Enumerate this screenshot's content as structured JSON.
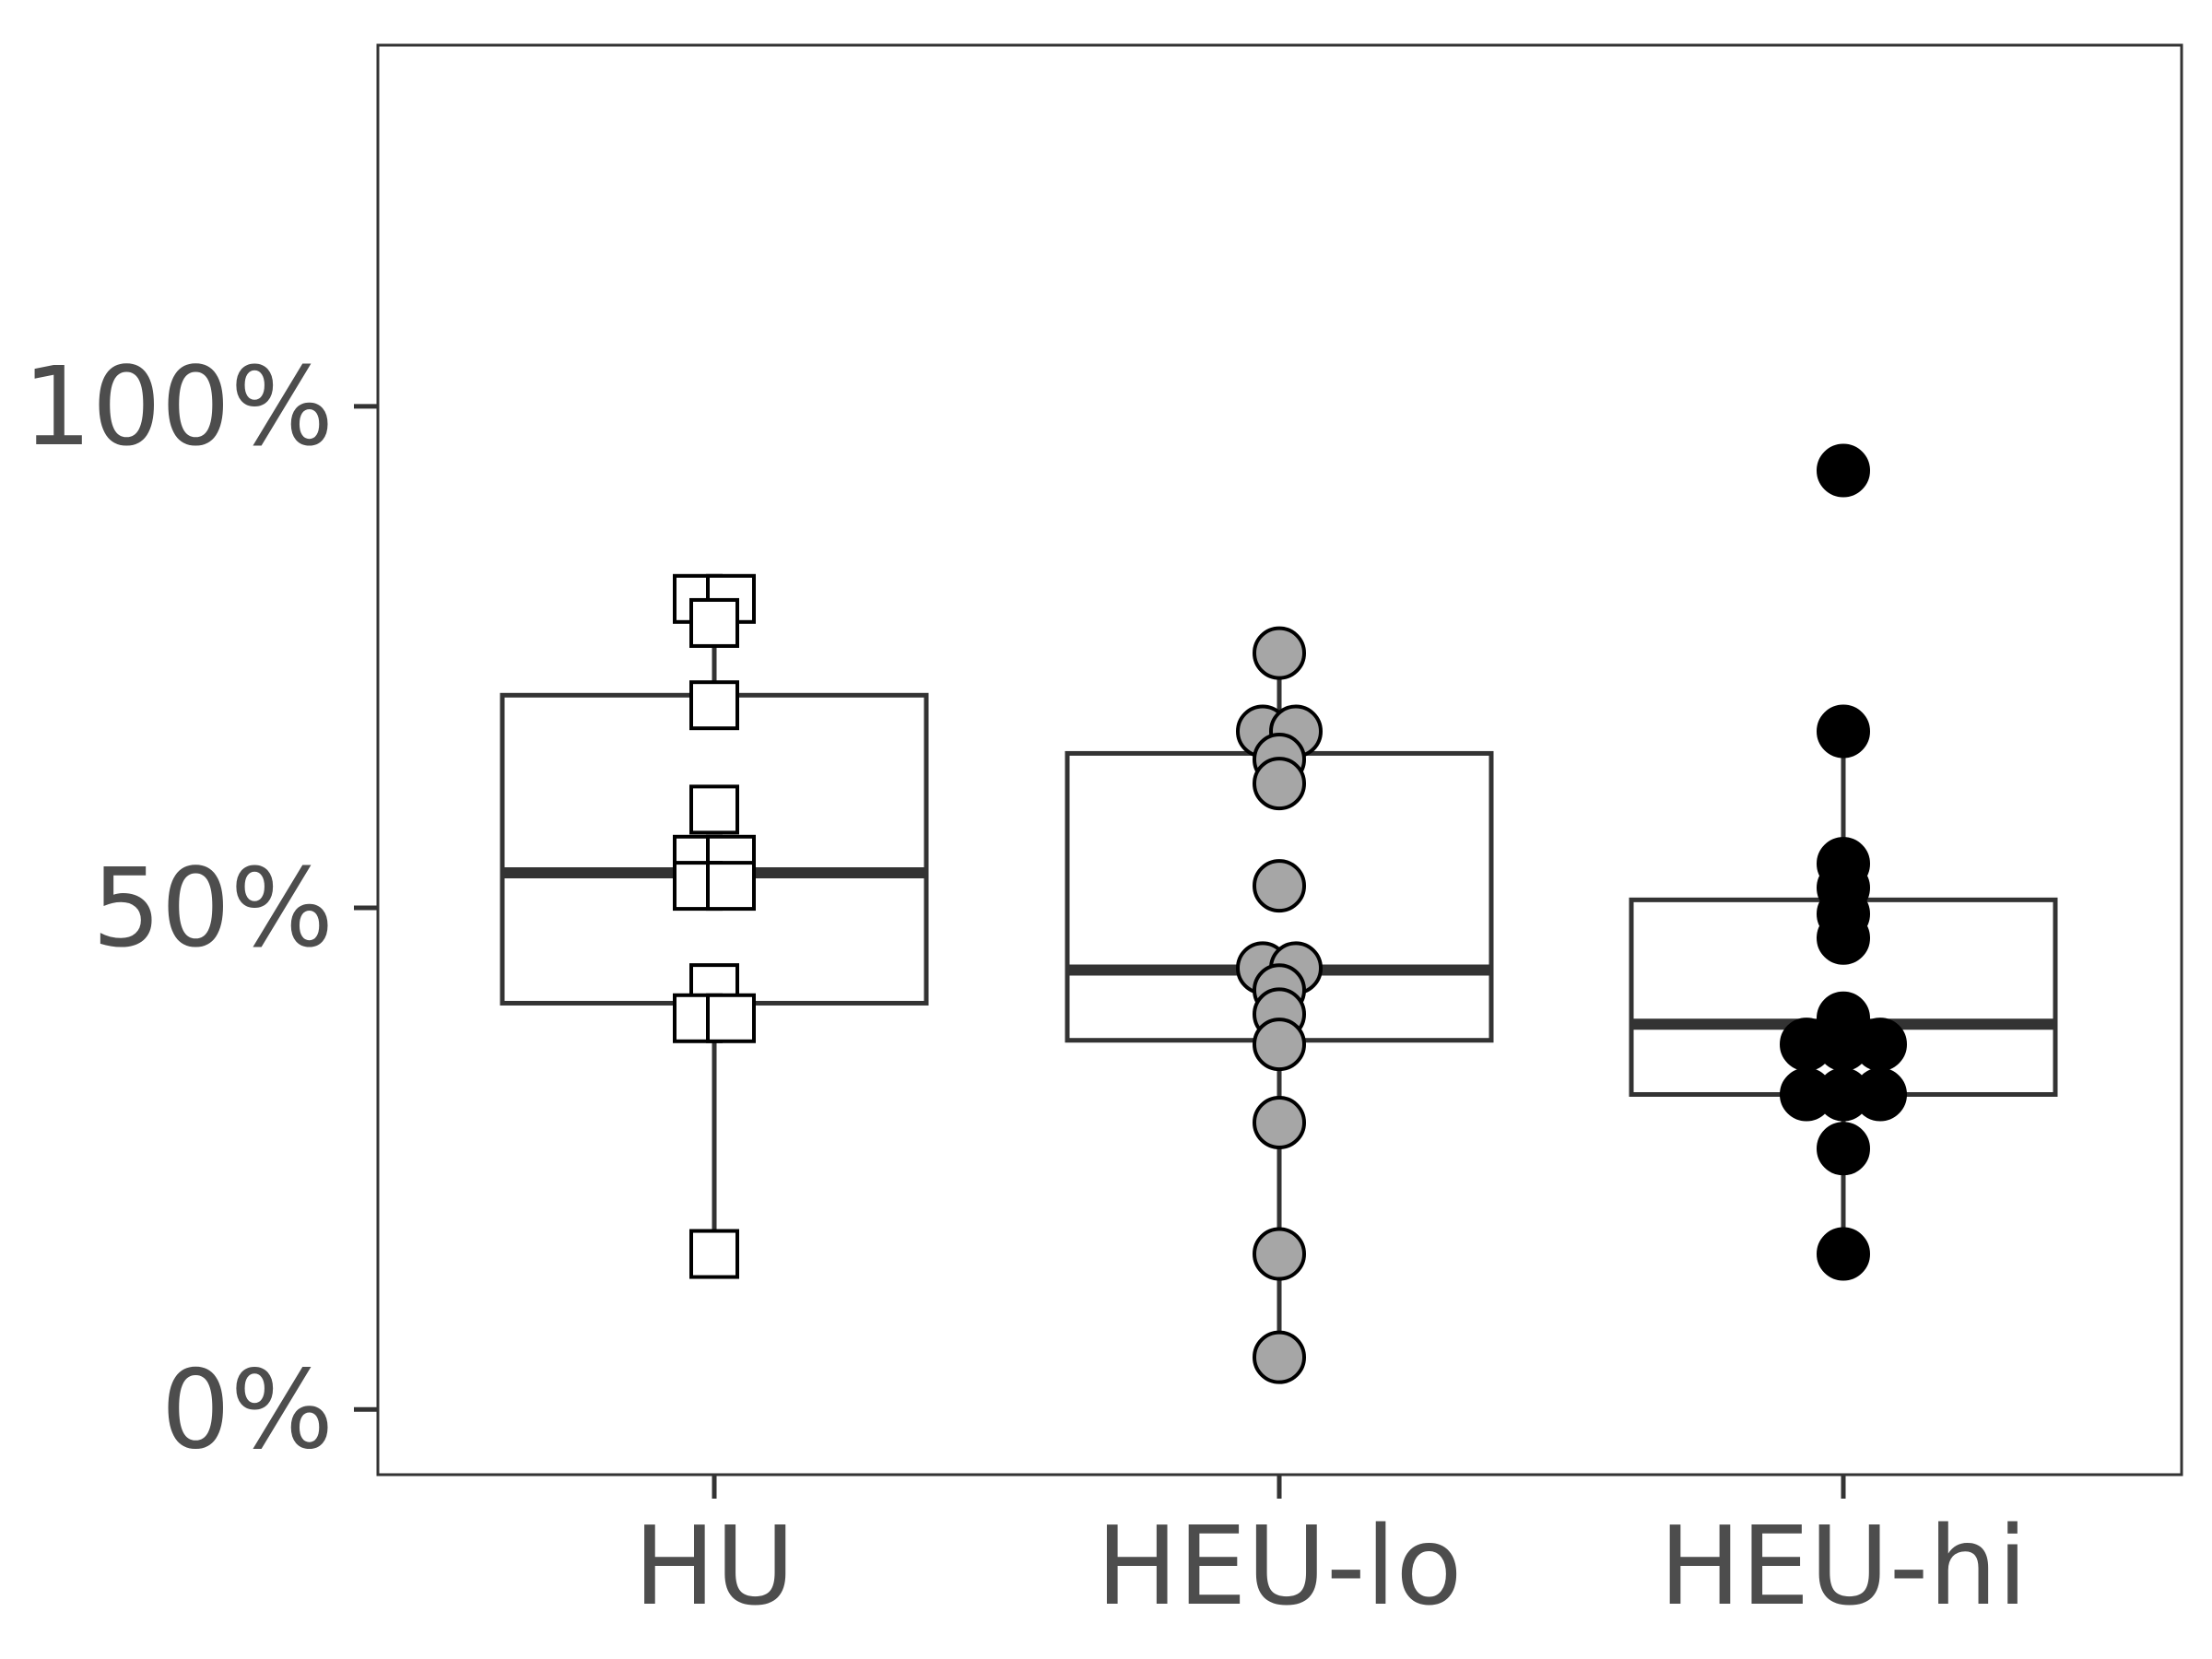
{
  "chart_data": {
    "type": "box",
    "title": "",
    "xlabel": "",
    "ylabel": "",
    "categories": [
      "HU",
      "HEU-lo",
      "HEU-hi"
    ],
    "ylim": [
      -0.065,
      1.36
    ],
    "yticks": [
      {
        "value": 0,
        "label": "0%"
      },
      {
        "value": 0.5,
        "label": "50%"
      },
      {
        "value": 1.0,
        "label": "100%"
      }
    ],
    "grid": false,
    "legend": "none",
    "series": [
      {
        "category": "HU",
        "marker": "square",
        "fill": "#ffffff",
        "box": {
          "q1": 0.405,
          "median": 0.535,
          "q3": 0.712,
          "whisker_low": 0.155,
          "whisker_high": 0.808
        },
        "points": [
          0.808,
          0.808,
          0.784,
          0.702,
          0.598,
          0.548,
          0.548,
          0.522,
          0.522,
          0.42,
          0.39,
          0.39,
          0.155
        ]
      },
      {
        "category": "HEU-lo",
        "marker": "circle",
        "fill": "#a6a6a6",
        "box": {
          "q1": 0.368,
          "median": 0.438,
          "q3": 0.654,
          "whisker_low": 0.052,
          "whisker_high": 0.754
        },
        "points": [
          0.754,
          0.676,
          0.676,
          0.648,
          0.624,
          0.522,
          0.44,
          0.44,
          0.418,
          0.394,
          0.364,
          0.286,
          0.155,
          0.052
        ]
      },
      {
        "category": "HEU-hi",
        "marker": "circle",
        "fill": "#000000",
        "box": {
          "q1": 0.314,
          "median": 0.384,
          "q3": 0.508,
          "whisker_low": 0.155,
          "whisker_high": 0.676
        },
        "points": [
          0.936,
          0.676,
          0.544,
          0.52,
          0.494,
          0.47,
          0.39,
          0.364,
          0.364,
          0.364,
          0.314,
          0.314,
          0.314,
          0.26,
          0.155
        ]
      }
    ]
  }
}
